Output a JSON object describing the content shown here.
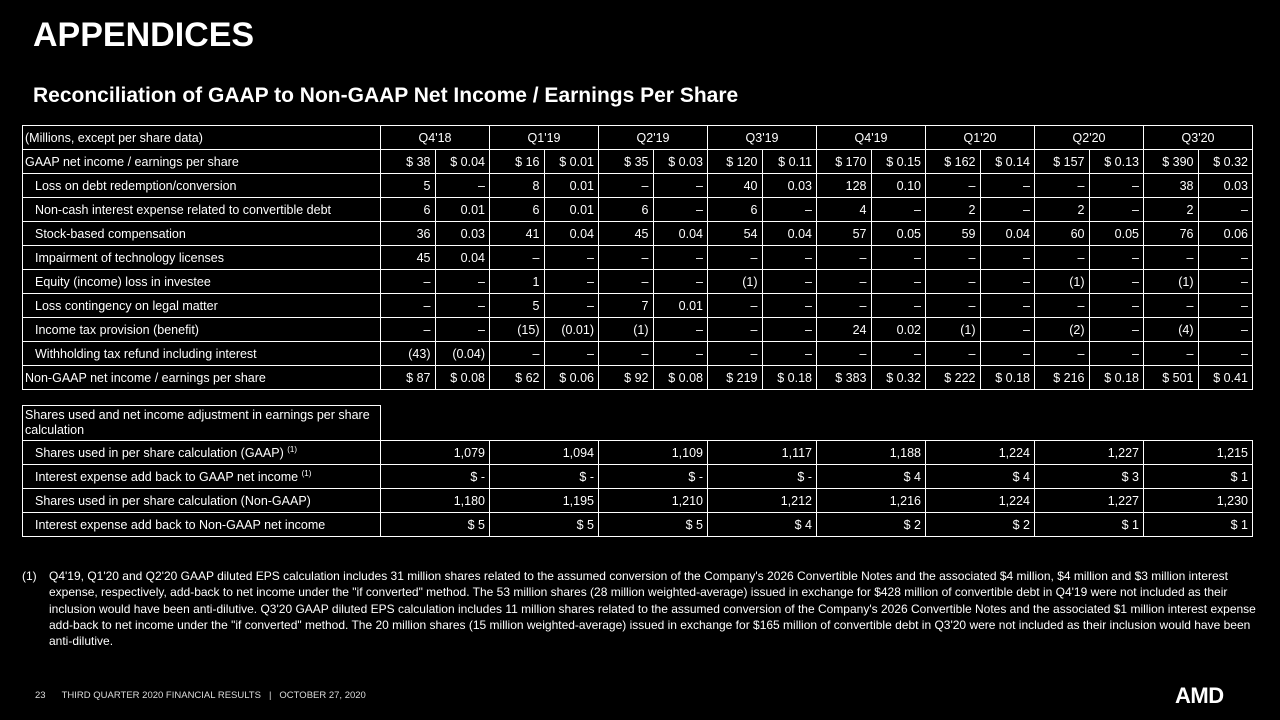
{
  "header": {
    "title": "APPENDICES",
    "subtitle": "Reconciliation of GAAP to Non-GAAP Net Income / Earnings Per Share"
  },
  "table": {
    "corner": "(Millions, except per share data)",
    "periods": [
      "Q4'18",
      "Q1'19",
      "Q2'19",
      "Q3'19",
      "Q4'19",
      "Q1'20",
      "Q2'20",
      "Q3'20"
    ],
    "rows": [
      {
        "label": "GAAP net income / earnings per share",
        "cells": [
          "$ 38",
          "$ 0.04",
          "$ 16",
          "$ 0.01",
          "$ 35",
          "$ 0.03",
          "$ 120",
          "$ 0.11",
          "$ 170",
          "$ 0.15",
          "$ 162",
          "$ 0.14",
          "$ 157",
          "$ 0.13",
          "$ 390",
          "$ 0.32"
        ]
      },
      {
        "label": "Loss on debt redemption/conversion",
        "cells": [
          "5",
          "–",
          "8",
          "0.01",
          "–",
          "–",
          "40",
          "0.03",
          "128",
          "0.10",
          "–",
          "–",
          "–",
          "–",
          "38",
          "0.03"
        ]
      },
      {
        "label": "Non-cash interest expense related to convertible debt",
        "cells": [
          "6",
          "0.01",
          "6",
          "0.01",
          "6",
          "–",
          "6",
          "–",
          "4",
          "–",
          "2",
          "–",
          "2",
          "–",
          "2",
          "–"
        ]
      },
      {
        "label": "Stock-based compensation",
        "cells": [
          "36",
          "0.03",
          "41",
          "0.04",
          "45",
          "0.04",
          "54",
          "0.04",
          "57",
          "0.05",
          "59",
          "0.04",
          "60",
          "0.05",
          "76",
          "0.06"
        ]
      },
      {
        "label": "Impairment of technology licenses",
        "cells": [
          "45",
          "0.04",
          "–",
          "–",
          "–",
          "–",
          "–",
          "–",
          "–",
          "–",
          "–",
          "–",
          "–",
          "–",
          "–",
          "–"
        ]
      },
      {
        "label": "Equity (income) loss in investee",
        "cells": [
          "–",
          "–",
          "1",
          "–",
          "–",
          "–",
          "(1)",
          "–",
          "–",
          "–",
          "–",
          "–",
          "(1)",
          "–",
          "(1)",
          "–"
        ]
      },
      {
        "label": "Loss contingency on legal matter",
        "cells": [
          "–",
          "–",
          "5",
          "–",
          "7",
          "0.01",
          "–",
          "–",
          "–",
          "–",
          "–",
          "–",
          "–",
          "–",
          "–",
          "–"
        ]
      },
      {
        "label": "Income tax provision (benefit)",
        "cells": [
          "–",
          "–",
          "(15)",
          "(0.01)",
          "(1)",
          "–",
          "–",
          "–",
          "24",
          "0.02",
          "(1)",
          "–",
          "(2)",
          "–",
          "(4)",
          "–"
        ]
      },
      {
        "label": "Withholding tax refund including interest",
        "cells": [
          "(43)",
          "(0.04)",
          "–",
          "–",
          "–",
          "–",
          "–",
          "–",
          "–",
          "–",
          "–",
          "–",
          "–",
          "–",
          "–",
          "–"
        ]
      },
      {
        "label": "Non-GAAP net income / earnings per share",
        "cells": [
          "$ 87",
          "$ 0.08",
          "$ 62",
          "$ 0.06",
          "$ 92",
          "$ 0.08",
          "$ 219",
          "$ 0.18",
          "$ 383",
          "$ 0.32",
          "$ 222",
          "$ 0.18",
          "$ 216",
          "$ 0.18",
          "$ 501",
          "$ 0.41"
        ]
      }
    ]
  },
  "shares_table": {
    "heading": "Shares used and net income adjustment in earnings per share calculation",
    "rows": [
      {
        "label": "Shares used in per share calculation (GAAP)",
        "note": "(1)",
        "cells": [
          "1,079",
          "1,094",
          "1,109",
          "1,117",
          "1,188",
          "1,224",
          "1,227",
          "1,215"
        ]
      },
      {
        "label": "Interest expense add back to GAAP net income",
        "note": "(1)",
        "cells": [
          "$ -",
          "$ -",
          "$ -",
          "$ -",
          "$ 4",
          "$ 4",
          "$ 3",
          "$ 1"
        ]
      },
      {
        "label": "Shares used in per share calculation (Non-GAAP)",
        "cells": [
          "1,180",
          "1,195",
          "1,210",
          "1,212",
          "1,216",
          "1,224",
          "1,227",
          "1,230"
        ]
      },
      {
        "label": "Interest expense add back to Non-GAAP net income",
        "cells": [
          "$ 5",
          "$ 5",
          "$ 5",
          "$ 4",
          "$ 2",
          "$ 2",
          "$ 1",
          "$ 1"
        ]
      }
    ]
  },
  "footnote": {
    "marker": "(1)",
    "text": "Q4'19, Q1'20 and Q2'20 GAAP diluted EPS calculation includes 31 million shares related to the assumed conversion of the Company's 2026 Convertible Notes and the associated $4 million, $4 million and $3 million interest expense, respectively, add-back to net income under the \"if converted\" method. The 53 million shares (28 million weighted-average) issued in exchange for $428 million of convertible debt in Q4'19 were not included as their inclusion would have been anti-dilutive. Q3'20 GAAP diluted EPS calculation includes 11 million shares related to the assumed conversion of the Company's 2026 Convertible Notes and the associated $1 million interest expense add-back to net income under the \"if converted\" method. The 20 million shares (15 million weighted-average) issued in exchange for $165 million of convertible debt in Q3'20 were not included as their inclusion would have been anti-dilutive."
  },
  "footer": {
    "page": "23",
    "text": "THIRD QUARTER 2020 FINANCIAL RESULTS",
    "separator": "|",
    "date": "OCTOBER 27, 2020",
    "logo": "AMD"
  }
}
